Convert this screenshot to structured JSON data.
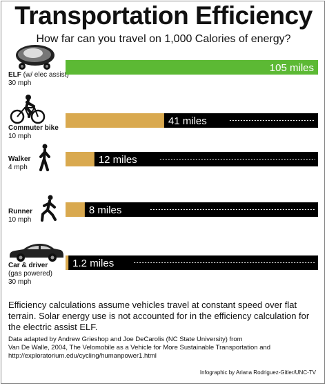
{
  "title": "Transportation Efficiency",
  "subtitle": "How far can you travel on 1,000 Calories of energy?",
  "chart_data": {
    "type": "bar",
    "orientation": "horizontal",
    "title": "Transportation Efficiency",
    "subtitle": "How far can you travel on 1,000 Calories of energy?",
    "xlim": [
      0,
      105
    ],
    "categories": [
      "ELF",
      "Commuter bike",
      "Walker",
      "Runner",
      "Car & driver"
    ],
    "values": [
      105,
      41,
      12,
      8,
      1.2
    ],
    "data_labels": [
      "105 miles",
      "41 miles",
      "12 miles",
      "8 miles",
      "1.2 miles"
    ],
    "rows": [
      {
        "name": "ELF",
        "detail": "(w/ elec assist)",
        "speed": "30 mph",
        "icon": "velomobile-icon"
      },
      {
        "name": "Commuter bike",
        "detail": "",
        "speed": "10 mph",
        "icon": "cyclist-icon"
      },
      {
        "name": "Walker",
        "detail": "",
        "speed": "4 mph",
        "icon": "walker-icon"
      },
      {
        "name": "Runner",
        "detail": "",
        "speed": "10 mph",
        "icon": "runner-icon"
      },
      {
        "name": "Car & driver",
        "detail": "(gas powered)",
        "speed": "30 mph",
        "icon": "car-icon"
      }
    ],
    "colors": {
      "highlight": "#5cb934",
      "bar": "#d9a94f",
      "track": "#000000",
      "text": "#ffffff"
    }
  },
  "footnote": "Efficiency calculations assume vehicles travel at constant speed over flat terrain. Solar energy use is not accounted for in the efficiency calculation for the electric assist ELF.",
  "credits": [
    "Data adapted by Andrew Grieshop and Joe DeCarolis (NC State University) from",
    "Van De Walle, 2004, The Velomobile as a Vehicle for More Sustainable Transportation and",
    "http://exploratorium.edu/cycling/humanpower1.html"
  ],
  "byline": "Infographic by Ariana Rodriguez-Gitler/UNC-TV"
}
